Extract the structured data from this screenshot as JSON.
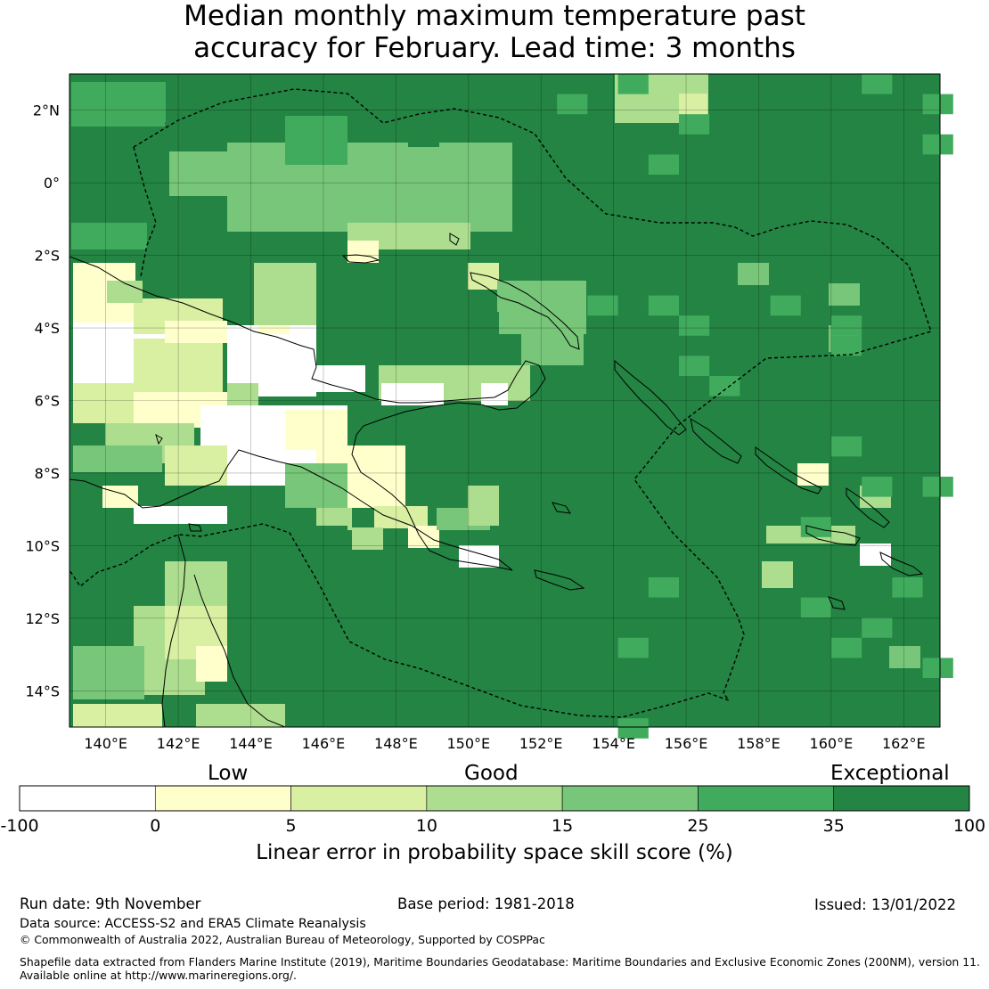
{
  "title": {
    "line1": "Median monthly maximum temperature past",
    "line2": "accuracy for February. Lead time: 3 months"
  },
  "map": {
    "lon_range": [
      139,
      163
    ],
    "lat_range": [
      -15,
      3
    ],
    "lon_ticks": [
      "140°E",
      "142°E",
      "144°E",
      "146°E",
      "148°E",
      "150°E",
      "152°E",
      "154°E",
      "156°E",
      "158°E",
      "160°E",
      "162°E"
    ],
    "lat_ticks": [
      "2°N",
      "0°",
      "2°S",
      "4°S",
      "6°S",
      "8°S",
      "10°S",
      "12°S",
      "14°S"
    ],
    "grid": "on",
    "base_color": "#238443"
  },
  "colorbar": {
    "categories": [
      "Low",
      "Good",
      "Exceptional"
    ],
    "tick_labels": [
      "-100",
      "0",
      "5",
      "10",
      "15",
      "25",
      "35",
      "100"
    ],
    "colors": [
      "#ffffff",
      "#ffffcc",
      "#d9f0a3",
      "#addd8e",
      "#78c679",
      "#41ab5d",
      "#238443"
    ],
    "label": "Linear error in probability space skill score (%)"
  },
  "footer": {
    "run_date": "Run date: 9th November",
    "base_period": "Base period: 1981-2018",
    "issued": "Issued: 13/01/2022",
    "data_source": "Data source: ACCESS-S2 and ERA5 Climate Reanalysis",
    "copyright": "© Commonwealth of Australia 2022, Australian Bureau of Meteorology, Supported by COSPPac",
    "shapefile_line1": "Shapefile data extracted from Flanders Marine Institute (2019), Maritime Boundaries Geodatabase: Maritime Boundaries and Exclusive Economic Zones (200NM), version 11.",
    "shapefile_line2": "Available online at http://www.marineregions.org/."
  }
}
